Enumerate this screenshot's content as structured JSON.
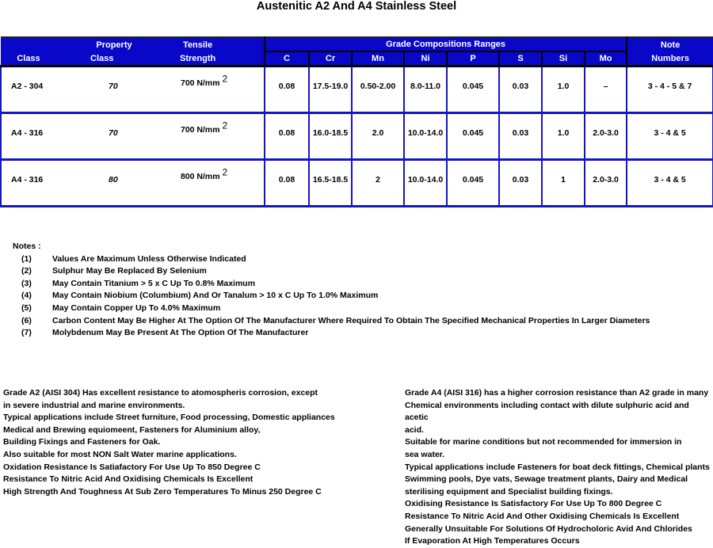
{
  "title": "Austenitic A2 And A4 Stainless Steel",
  "table": {
    "headers": {
      "class": "Class",
      "property_top": "Property",
      "property_bottom": "Class",
      "tensile_top": "Tensile",
      "tensile_bottom": "Strength",
      "grade_group": "Grade Compositions Ranges",
      "note_top": "Note",
      "note_bottom": "Numbers",
      "elements": [
        "C",
        "Cr",
        "Mn",
        "Ni",
        "P",
        "S",
        "Si",
        "Mo"
      ]
    },
    "rows": [
      {
        "class": "A2 - 304",
        "property_class": "70",
        "tensile": "700 N/mm",
        "sup": "2",
        "values": [
          "0.08",
          "17.5-19.0",
          "0.50-2.00",
          "8.0-11.0",
          "0.045",
          "0.03",
          "1.0",
          "–"
        ],
        "notes": "3 - 4 - 5 & 7"
      },
      {
        "class": "A4 - 316",
        "property_class": "70",
        "tensile": "700 N/mm",
        "sup": "2",
        "values": [
          "0.08",
          "16.0-18.5",
          "2.0",
          "10.0-14.0",
          "0.045",
          "0.03",
          "1.0",
          "2.0-3.0"
        ],
        "notes": "3 - 4 & 5"
      },
      {
        "class": "A4 - 316",
        "property_class": "80",
        "tensile": "800 N/mm",
        "sup": "2",
        "values": [
          "0.08",
          "16.5-18.5",
          "2",
          "10.0-14.0",
          "0.045",
          "0.03",
          "1",
          "2.0-3.0"
        ],
        "notes": "3 - 4 & 5"
      }
    ]
  },
  "notes": {
    "heading": "Notes :",
    "items": [
      {
        "num": "(1)",
        "text": "Values Are Maximum Unless Otherwise Indicated"
      },
      {
        "num": "(2)",
        "text": "Sulphur May Be Replaced By Selenium"
      },
      {
        "num": "(3)",
        "text": "May Contain Titanium  > 5 x C Up To 0.8% Maximum"
      },
      {
        "num": "(4)",
        "text": "May Contain Niobium (Columbium) And Or Tanalum  > 10 x C Up To 1.0% Maximum"
      },
      {
        "num": "(5)",
        "text": "May Contain Copper Up To 4.0% Maximum"
      },
      {
        "num": "(6)",
        "text": "Carbon Content May Be Higher At The Option Of The Manufacturer Where Required To Obtain The Specified Mechanical Properties In Larger Diameters"
      },
      {
        "num": "(7)",
        "text": "Molybdenum May Be Present At The Option Of The Manufacturer"
      }
    ]
  },
  "a2_text": [
    "Grade A2 (AISI 304) Has excellent resistance to atomospheris corrosion, except",
    "in severe industrial and marine environments.",
    "Typical applications include Street furniture, Food processing, Domestic appliances",
    "Medical and Brewing equiomeent, Fasteners for Aluminium alloy,",
    "Building Fixings and Fasteners for Oak.",
    "Also suitable for most NON Salt Water marine applications.",
    "Oxidation Resistance Is Satiafactory For Use Up To 850 Degree C",
    "Resistance To Nitric Acid And Oxidising Chemicals Is Excellent",
    "High Strength And Toughness At Sub Zero Temperatures To Minus 250 Degree C"
  ],
  "a4_text": [
    "Grade A4 (AISI 316) has a higher corrosion resistance than A2 grade in many",
    "Chemical environments including contact with dilute sulphuric acid and acetic",
    "acid.",
    "Suitable for marine conditions but not recommended for immersion in",
    "sea water.",
    "Typical applications include Fasteners for boat deck fittings, Chemical plants",
    "Swimming pools, Dye vats, Sewage treatment plants, Dairy and Medical",
    "sterilising equipment and Specialist building fixings.",
    "Oxidising Resistance Is Satisfactory For Use Up To 800 Degree C",
    "Resistance To Nitric Acid And Other Oxidising Chemicals Is Excellent",
    "Generally Unsuitable For Solutions Of Hydrocholoric Avid And Chlorides",
    "If Evaporation At High Temperatures Occurs"
  ]
}
